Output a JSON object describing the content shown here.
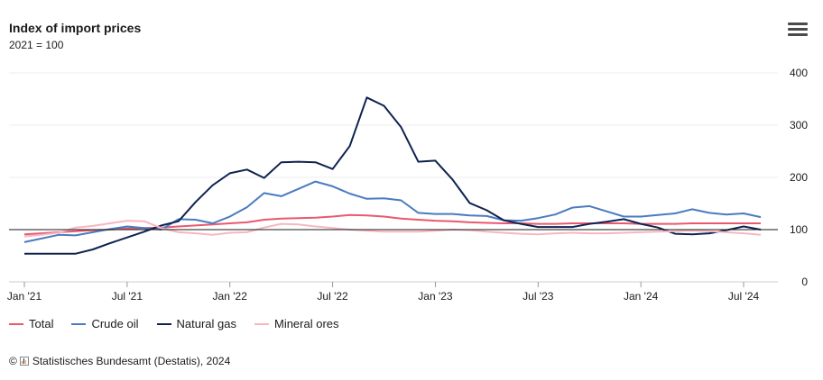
{
  "header": {
    "title": "Index of import prices",
    "subtitle": "2021 = 100"
  },
  "credits": {
    "copyright": "©",
    "text": "Statistisches Bundesamt (Destatis), 2024"
  },
  "legend": [
    {
      "label": "Total",
      "color": "#e8596f"
    },
    {
      "label": "Crude oil",
      "color": "#4a7bbf"
    },
    {
      "label": "Natural gas",
      "color": "#0f2350"
    },
    {
      "label": "Mineral ores",
      "color": "#f6b7c1"
    }
  ],
  "chart_data": {
    "type": "line",
    "title": "Index of import prices",
    "subtitle": "2021 = 100",
    "xlabel": "",
    "ylabel": "",
    "ylim": [
      0,
      400
    ],
    "yticks": [
      0,
      100,
      200,
      300,
      400
    ],
    "reference_line": 100,
    "x_tick_labels": [
      "Jan '21",
      "Jul '21",
      "Jan '22",
      "Jul '22",
      "Jan '23",
      "Jul '23",
      "Jan '24",
      "Jul '24"
    ],
    "x": [
      "Jan '21",
      "Feb '21",
      "Mar '21",
      "Apr '21",
      "May '21",
      "Jun '21",
      "Jul '21",
      "Aug '21",
      "Sep '21",
      "Oct '21",
      "Nov '21",
      "Dec '21",
      "Jan '22",
      "Feb '22",
      "Mar '22",
      "Apr '22",
      "May '22",
      "Jun '22",
      "Jul '22",
      "Aug '22",
      "Sep '22",
      "Oct '22",
      "Nov '22",
      "Dec '22",
      "Jan '23",
      "Feb '23",
      "Mar '23",
      "Apr '23",
      "May '23",
      "Jun '23",
      "Jul '23",
      "Aug '23",
      "Sep '23",
      "Oct '23",
      "Nov '23",
      "Dec '23",
      "Jan '24",
      "Feb '24",
      "Mar '24",
      "Apr '24",
      "May '24",
      "Jun '24",
      "Jul '24",
      "Aug '24"
    ],
    "series": [
      {
        "name": "Total",
        "color": "#e8596f",
        "values": [
          91,
          93,
          95,
          97,
          99,
          100,
          102,
          103,
          104,
          106,
          108,
          110,
          112,
          114,
          119,
          121,
          122,
          123,
          125,
          128,
          127,
          125,
          121,
          119,
          117,
          116,
          114,
          113,
          112,
          112,
          111,
          111,
          112,
          112,
          112,
          112,
          111,
          111,
          111,
          112,
          112,
          112,
          112,
          112
        ]
      },
      {
        "name": "Crude oil",
        "color": "#4a7bbf",
        "values": [
          76,
          83,
          90,
          89,
          95,
          101,
          106,
          103,
          100,
          120,
          119,
          112,
          125,
          143,
          170,
          164,
          178,
          192,
          183,
          169,
          159,
          160,
          156,
          132,
          130,
          130,
          127,
          126,
          118,
          117,
          122,
          129,
          142,
          145,
          135,
          125,
          125,
          128,
          131,
          139,
          132,
          129,
          131,
          124
        ]
      },
      {
        "name": "Natural gas",
        "color": "#0f2350",
        "values": [
          54,
          54,
          54,
          54,
          62,
          74,
          85,
          96,
          108,
          116,
          153,
          185,
          208,
          215,
          199,
          229,
          230,
          229,
          216,
          260,
          353,
          337,
          296,
          230,
          232,
          196,
          151,
          137,
          118,
          111,
          105,
          105,
          105,
          111,
          115,
          120,
          111,
          104,
          92,
          91,
          93,
          99,
          106,
          100
        ]
      },
      {
        "name": "Mineral ores",
        "color": "#f6b7c1",
        "values": [
          87,
          90,
          94,
          104,
          107,
          112,
          117,
          116,
          103,
          95,
          93,
          90,
          94,
          95,
          104,
          111,
          110,
          106,
          103,
          100,
          98,
          96,
          96,
          96,
          98,
          100,
          99,
          96,
          94,
          92,
          91,
          93,
          94,
          93,
          93,
          94,
          95,
          96,
          97,
          98,
          97,
          95,
          93,
          90
        ]
      }
    ]
  }
}
